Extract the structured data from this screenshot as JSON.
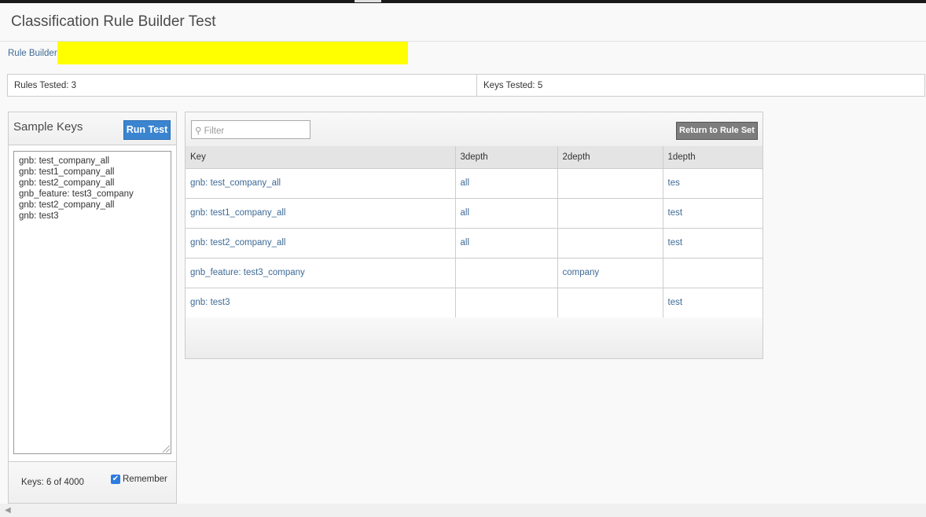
{
  "header": {
    "title": "Classification Rule Builder Test"
  },
  "breadcrumb": {
    "label": "Rule Builder ."
  },
  "stats": {
    "rules_tested": "Rules Tested: 3",
    "keys_tested": "Keys Tested: 5"
  },
  "sample_keys": {
    "title": "Sample Keys",
    "run_label": "Run Test",
    "lines": [
      "gnb: test_company_all",
      "gnb: test1_company_all",
      "gnb: test2_company_all",
      "gnb_feature: test3_company",
      "gnb: test2_company_all",
      "gnb: test3"
    ],
    "count_label": "Keys:  6  of 4000",
    "remember_label": "Remember",
    "remember_checked": true
  },
  "results": {
    "filter_placeholder": "Filter",
    "return_label": "Return to Rule Set",
    "columns": [
      "Key",
      "3depth",
      "2depth",
      "1depth"
    ],
    "rows": [
      [
        "gnb: test_company_all",
        "all",
        "",
        "tes"
      ],
      [
        "gnb: test1_company_all",
        "all",
        "",
        "test"
      ],
      [
        "gnb: test2_company_all",
        "all",
        "",
        "test"
      ],
      [
        "gnb_feature: test3_company",
        "",
        "company",
        ""
      ],
      [
        "gnb: test3",
        "",
        "",
        "test"
      ]
    ]
  },
  "colors": {
    "accent": "#3a84d0",
    "link": "#3e6a96",
    "highlight": "#ffff00"
  }
}
